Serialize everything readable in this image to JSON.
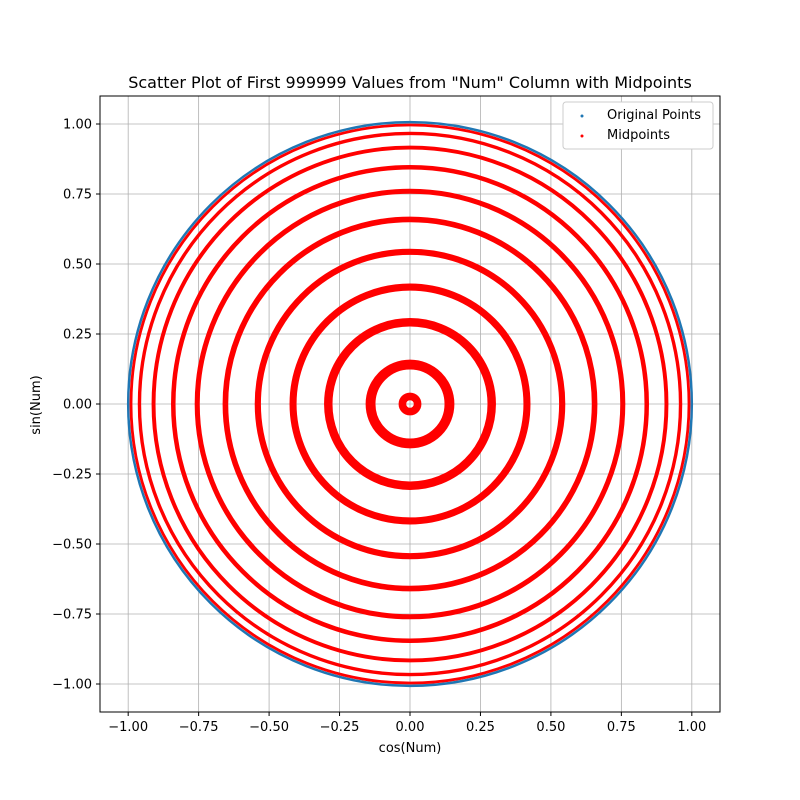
{
  "chart_data": {
    "type": "scatter",
    "title": "Scatter Plot of First 999999 Values from \"Num\" Column with Midpoints",
    "xlabel": "cos(Num)",
    "ylabel": "sin(Num)",
    "xlim": [
      -1.1,
      1.1
    ],
    "ylim": [
      -1.1,
      1.1
    ],
    "xticks": [
      -1.0,
      -0.75,
      -0.5,
      -0.25,
      0.0,
      0.25,
      0.5,
      0.75,
      1.0
    ],
    "yticks": [
      -1.0,
      -0.75,
      -0.5,
      -0.25,
      0.0,
      0.25,
      0.5,
      0.75,
      1.0
    ],
    "xtick_labels": [
      "−1.00",
      "−0.75",
      "−0.50",
      "−0.25",
      "0.00",
      "0.25",
      "0.50",
      "0.75",
      "1.00"
    ],
    "ytick_labels": [
      "−1.00",
      "−0.75",
      "−0.50",
      "−0.25",
      "0.00",
      "0.25",
      "0.50",
      "0.75",
      "1.00"
    ],
    "grid": true,
    "legend_position": "top-right",
    "series": [
      {
        "name": "Original Points",
        "color": "#1f77b4",
        "shape": "circle",
        "radius": 1.0
      },
      {
        "name": "Midpoints",
        "color": "#ff0000",
        "shape": "rings",
        "rings": [
          {
            "radius": 0.01,
            "width": 0.03
          },
          {
            "radius": 0.14,
            "width": 0.035
          },
          {
            "radius": 0.29,
            "width": 0.03
          },
          {
            "radius": 0.415,
            "width": 0.025
          },
          {
            "radius": 0.54,
            "width": 0.022
          },
          {
            "radius": 0.655,
            "width": 0.02
          },
          {
            "radius": 0.755,
            "width": 0.018
          },
          {
            "radius": 0.84,
            "width": 0.016
          },
          {
            "radius": 0.91,
            "width": 0.014
          },
          {
            "radius": 0.96,
            "width": 0.012
          },
          {
            "radius": 0.99,
            "width": 0.01
          }
        ]
      }
    ]
  }
}
